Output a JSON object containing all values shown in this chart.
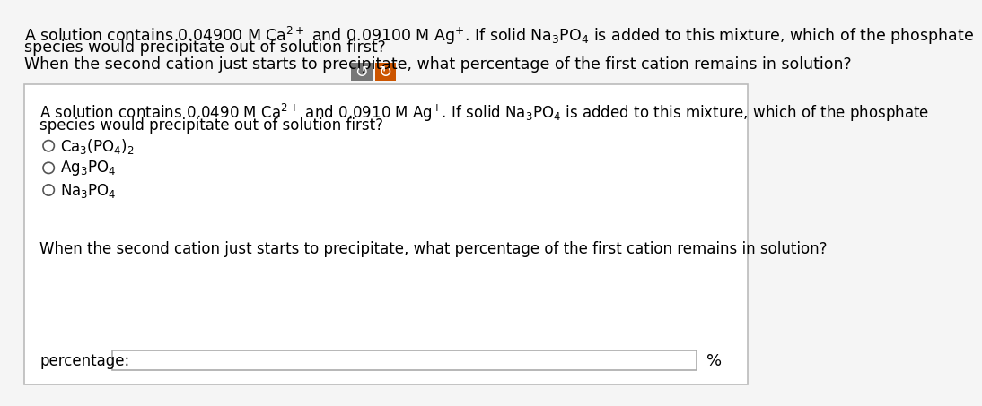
{
  "bg_color": "#f5f5f5",
  "box_bg": "#ffffff",
  "box_border": "#c0c0c0",
  "btn1_color": "#777777",
  "btn2_color": "#cc5500",
  "font_size_outer": 12.5,
  "font_size_inner": 12.0,
  "outer_line1": "A solution contains 0.04900 M Ca$^{2+}$ and 0.09100 M Ag$^{+}$. If solid Na$_3$PO$_4$ is added to this mixture, which of the phosphate",
  "outer_line2": "species would precipitate out of solution first?",
  "outer_line3": "When the second cation just starts to precipitate, what percentage of the first cation remains in solution?",
  "inner_line1": "A solution contains 0.0490 M Ca$^{2+}$ and 0.0910 M Ag$^{+}$. If solid Na$_3$PO$_4$ is added to this mixture, which of the phosphate",
  "inner_line2": "species would precipitate out of solution first?",
  "option1": "Ca$_3$(PO$_4$)$_2$",
  "option2": "Ag$_3$PO$_4$",
  "option3": "Na$_3$PO$_4$",
  "bottom_q": "When the second cation just starts to precipitate, what percentage of the first cation remains in solution?",
  "pct_label": "percentage:",
  "pct_sign": "%",
  "circle_r": 8,
  "circle_color": "#555555"
}
